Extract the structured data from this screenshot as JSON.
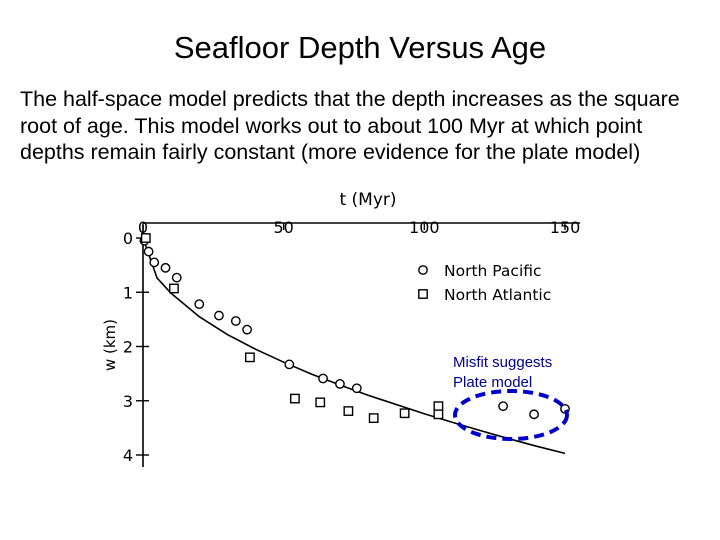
{
  "slide": {
    "title": "Seafloor Depth Versus Age",
    "body": "The half-space model predicts that the depth increases as the square root of age.  This model works out to about 100 Myr at which point depths remain fairly constant (more evidence for the plate model)"
  },
  "annotation": {
    "text_line1": "Misfit suggests",
    "text_line2": "Plate model",
    "highlight_color": "#0000cc"
  },
  "chart_data": {
    "type": "scatter",
    "xlabel": "t (Myr)",
    "ylabel": "w (km)",
    "xlim": [
      0,
      150
    ],
    "ylim": [
      0,
      4
    ],
    "y_inverted": true,
    "x_ticks": [
      "0",
      "50",
      "100",
      "150"
    ],
    "y_ticks": [
      "0",
      "1",
      "2",
      "3",
      "4"
    ],
    "legend_position": "top-right",
    "grid": false,
    "series": [
      {
        "name": "North Pacific",
        "marker": "circle",
        "points": [
          [
            0.5,
            0.05
          ],
          [
            2,
            0.25
          ],
          [
            4,
            0.45
          ],
          [
            8,
            0.55
          ],
          [
            12,
            0.73
          ],
          [
            20,
            1.22
          ],
          [
            27,
            1.43
          ],
          [
            33,
            1.53
          ],
          [
            37,
            1.69
          ],
          [
            52,
            2.33
          ],
          [
            64,
            2.59
          ],
          [
            70,
            2.69
          ],
          [
            76,
            2.77
          ],
          [
            128,
            3.1
          ],
          [
            139,
            3.25
          ],
          [
            150,
            3.15
          ]
        ]
      },
      {
        "name": "North Atlantic",
        "marker": "square",
        "points": [
          [
            1,
            0.0
          ],
          [
            11,
            0.93
          ],
          [
            38,
            2.2
          ],
          [
            54,
            2.96
          ],
          [
            63,
            3.03
          ],
          [
            73,
            3.19
          ],
          [
            82,
            3.32
          ],
          [
            93,
            3.23
          ],
          [
            105,
            3.1
          ],
          [
            105,
            3.25
          ]
        ]
      },
      {
        "name": "",
        "kind": "model-curve",
        "model": "half-space sqrt(age)",
        "points": [
          [
            0,
            0.0
          ],
          [
            5,
            0.74
          ],
          [
            10,
            1.02
          ],
          [
            20,
            1.45
          ],
          [
            30,
            1.78
          ],
          [
            40,
            2.05
          ],
          [
            50,
            2.29
          ],
          [
            60,
            2.51
          ],
          [
            70,
            2.71
          ],
          [
            80,
            2.9
          ],
          [
            90,
            3.07
          ],
          [
            100,
            3.24
          ],
          [
            110,
            3.4
          ],
          [
            120,
            3.55
          ],
          [
            130,
            3.7
          ],
          [
            140,
            3.84
          ],
          [
            150,
            3.97
          ]
        ]
      }
    ]
  }
}
